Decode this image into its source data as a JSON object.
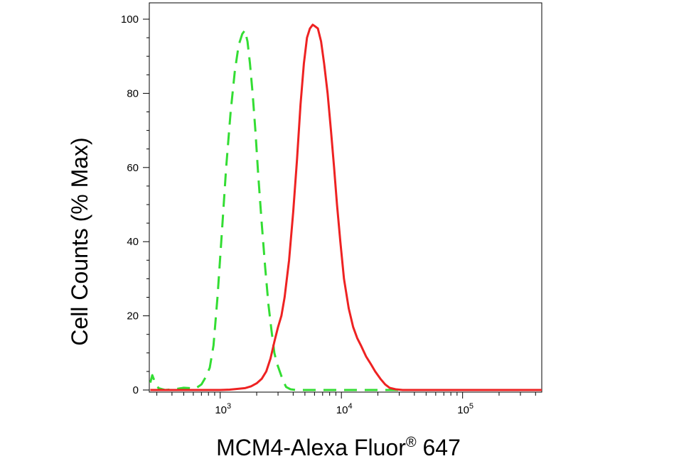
{
  "chart_data": {
    "type": "line",
    "xlabel": "MCM4-Alexa Fluor",
    "xlabel_superscript": "®",
    "xlabel_suffix": " 647",
    "ylabel": "Cell Counts (% Max)",
    "x_scale": "log",
    "xlim": [
      260,
      450000
    ],
    "ylim": [
      0,
      100
    ],
    "y_ticks": [
      {
        "value": 0,
        "label": "0"
      },
      {
        "value": 20,
        "label": "20"
      },
      {
        "value": 40,
        "label": "40"
      },
      {
        "value": 60,
        "label": "60"
      },
      {
        "value": 80,
        "label": "80"
      },
      {
        "value": 100,
        "label": "100"
      }
    ],
    "x_ticks": [
      {
        "value": 1000,
        "base": "10",
        "exp": "3"
      },
      {
        "value": 10000,
        "base": "10",
        "exp": "4"
      },
      {
        "value": 100000,
        "base": "10",
        "exp": "5"
      }
    ],
    "grid": false,
    "legend": "none",
    "series": [
      {
        "color": "#33dd33",
        "style": "dashed",
        "x": [
          265,
          275,
          290,
          310,
          350,
          420,
          500,
          560,
          620,
          700,
          760,
          820,
          880,
          950,
          1030,
          1120,
          1220,
          1320,
          1420,
          1520,
          1600,
          1680,
          1760,
          1850,
          1950,
          2060,
          2200,
          2350,
          2500,
          2650,
          2800,
          2950,
          3100,
          3300,
          3500,
          3800,
          4200,
          5000,
          7000,
          10000,
          20000,
          50000,
          100000,
          450000
        ],
        "y": [
          2.0,
          4.0,
          2.0,
          0.5,
          0.0,
          0.2,
          0.6,
          0.5,
          0.3,
          1.5,
          3.5,
          6.0,
          12.0,
          25.0,
          42.0,
          60.0,
          75.0,
          86.0,
          93.0,
          96.0,
          97.0,
          94.0,
          88.0,
          80.0,
          70.0,
          58.0,
          45.0,
          33.0,
          23.0,
          16.0,
          10.0,
          7.0,
          5.0,
          2.5,
          0.8,
          0.2,
          0.0,
          0.0,
          0.0,
          0.0,
          0.0,
          0.0,
          0.0,
          0.0
        ]
      },
      {
        "color": "#ee2222",
        "style": "solid",
        "x": [
          265,
          500,
          800,
          1000,
          1200,
          1400,
          1600,
          1800,
          2000,
          2200,
          2400,
          2600,
          2800,
          3000,
          3200,
          3400,
          3700,
          4000,
          4300,
          4600,
          4900,
          5200,
          5500,
          5800,
          6100,
          6400,
          6800,
          7200,
          7700,
          8200,
          8700,
          9200,
          9800,
          10500,
          11500,
          12500,
          13500,
          14500,
          16000,
          17500,
          19000,
          21000,
          23000,
          25000,
          28000,
          32000,
          40000,
          60000,
          100000,
          200000,
          450000
        ],
        "y": [
          0.0,
          0.0,
          0.0,
          0.0,
          0.1,
          0.3,
          0.5,
          1.0,
          1.8,
          3.0,
          5.0,
          8.5,
          13.0,
          17.0,
          20.0,
          25.0,
          35.0,
          48.0,
          62.0,
          77.0,
          88.0,
          95.0,
          97.5,
          98.5,
          98.0,
          97.5,
          94.0,
          88.0,
          80.0,
          70.0,
          60.0,
          50.0,
          40.0,
          30.0,
          22.0,
          17.0,
          14.0,
          12.0,
          9.0,
          7.0,
          5.0,
          3.0,
          1.5,
          0.6,
          0.2,
          0.0,
          0.0,
          0.0,
          0.0,
          0.0,
          0.0
        ]
      }
    ]
  }
}
